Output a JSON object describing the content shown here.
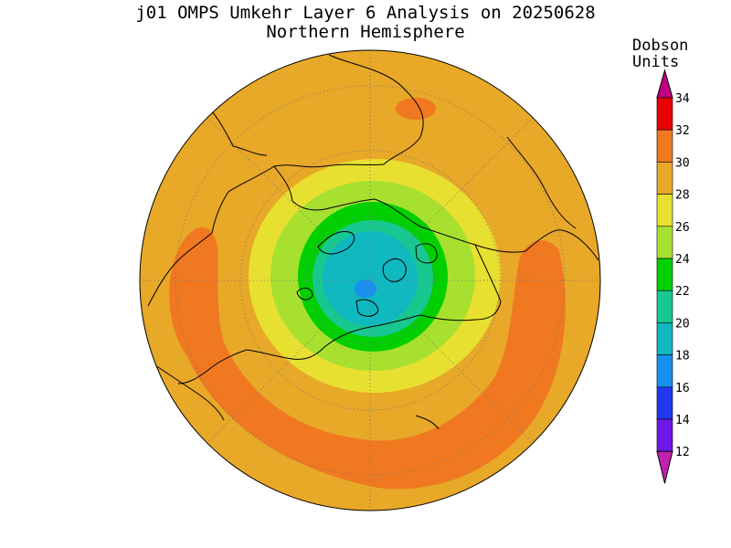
{
  "title_line1": "j01 OMPS Umkehr Layer 6 Analysis on 20250628",
  "title_line2": "Northern Hemisphere",
  "colorbar": {
    "title_line1": "Dobson",
    "title_line2": "Units",
    "levels": [
      {
        "value": "34",
        "color": "#e80000"
      },
      {
        "value": "32",
        "color": "#f07820"
      },
      {
        "value": "30",
        "color": "#e8a828"
      },
      {
        "value": "28",
        "color": "#e8e030"
      },
      {
        "value": "26",
        "color": "#a8e030"
      },
      {
        "value": "24",
        "color": "#00d000"
      },
      {
        "value": "22",
        "color": "#18c890"
      },
      {
        "value": "20",
        "color": "#10b8c0"
      },
      {
        "value": "18",
        "color": "#1890f0"
      },
      {
        "value": "16",
        "color": "#2038f0"
      },
      {
        "value": "14",
        "color": "#7018e8"
      },
      {
        "value": "12",
        "color": "#c020b0"
      }
    ],
    "top_arrow_color": "#c00080",
    "bottom_arrow_color": "#c020b0"
  },
  "map_colors": {
    "background_field": "#e8a828",
    "high_band": "#f07820",
    "ring_28": "#e8e030",
    "ring_26": "#a8e030",
    "ring_24": "#00d000",
    "ring_22": "#18c890",
    "ring_20": "#10b8c0",
    "ring_18": "#1890f0"
  }
}
